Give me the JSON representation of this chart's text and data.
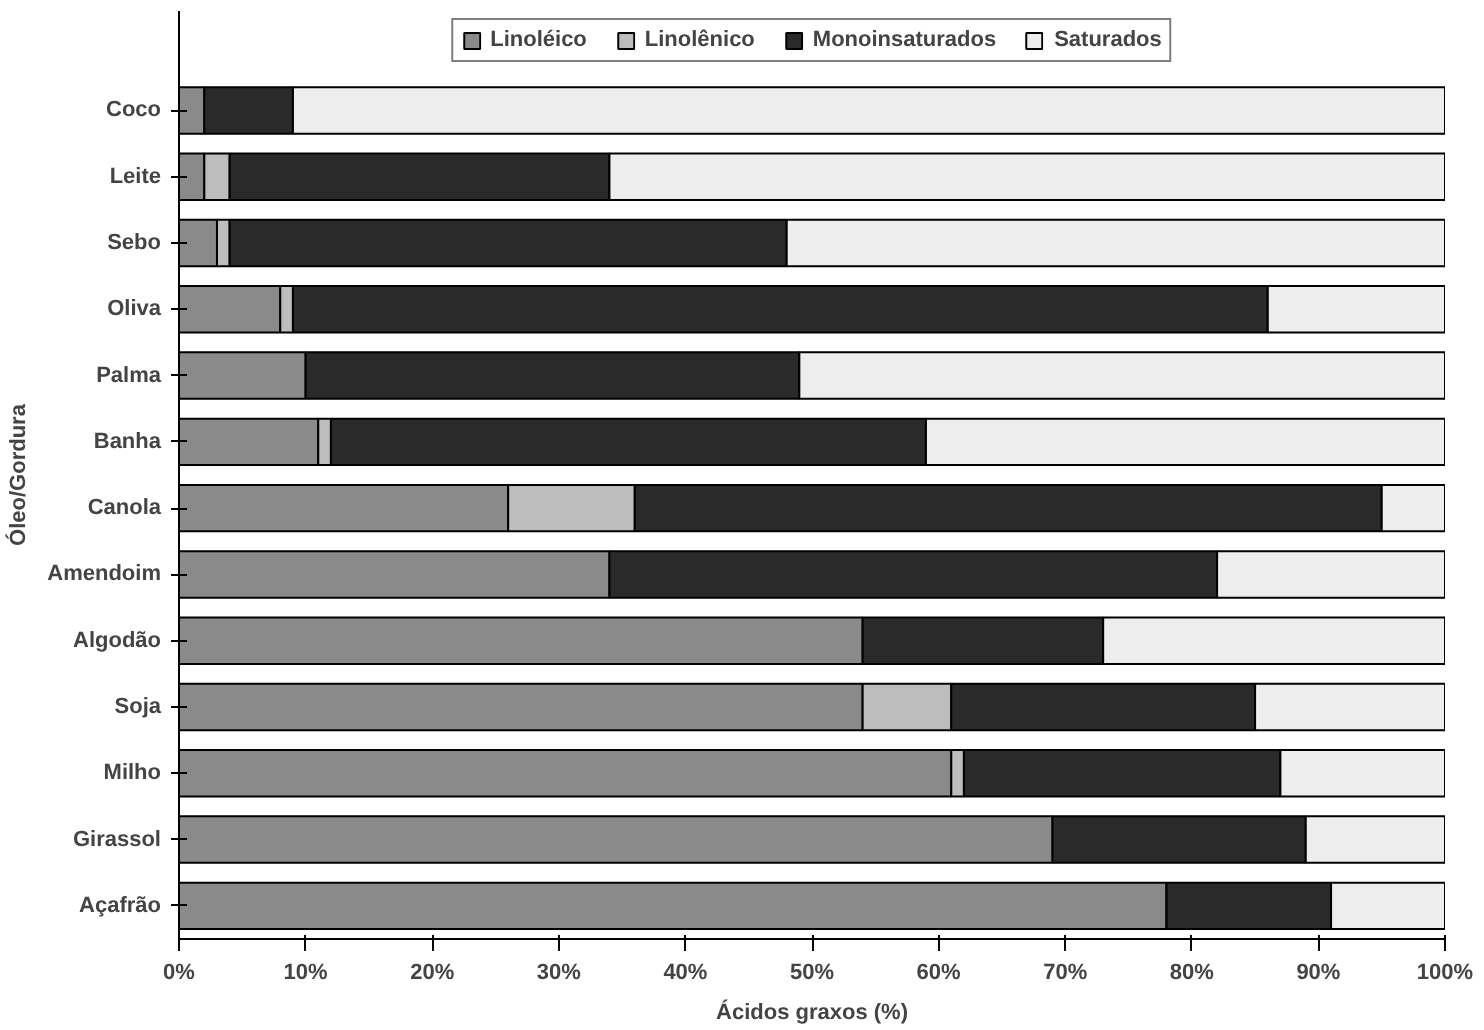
{
  "chart_data": {
    "type": "bar",
    "orientation": "horizontal",
    "stacked": true,
    "xlabel": "Ácidos graxos (%)",
    "ylabel": "Óleo/Gordura",
    "categories": [
      "Coco",
      "Leite",
      "Sebo",
      "Oliva",
      "Palma",
      "Banha",
      "Canola",
      "Amendoim",
      "Algodão",
      "Soja",
      "Milho",
      "Girassol",
      "Açafrão"
    ],
    "series": [
      {
        "name": "Linoléico",
        "color": "#8a8a8a",
        "values": [
          2,
          2,
          3,
          8,
          10,
          11,
          26,
          34,
          54,
          54,
          61,
          69,
          78
        ]
      },
      {
        "name": "Linolênico",
        "color": "#bdbdbd",
        "values": [
          null,
          2,
          1,
          1,
          null,
          1,
          10,
          null,
          null,
          7,
          1,
          null,
          null
        ]
      },
      {
        "name": "Monoinsaturados",
        "color": "#2a2a2a",
        "values": [
          7,
          30,
          44,
          77,
          39,
          47,
          59,
          48,
          19,
          24,
          25,
          20,
          13
        ]
      },
      {
        "name": "Saturados",
        "color": "#ededed",
        "values": [
          91,
          66,
          52,
          14,
          51,
          41,
          5,
          18,
          27,
          15,
          13,
          11,
          9
        ]
      }
    ],
    "xlim": [
      0,
      100
    ],
    "xticks": [
      {
        "value": 0,
        "label": "0%"
      },
      {
        "value": 10,
        "label": "10%"
      },
      {
        "value": 20,
        "label": "20%"
      },
      {
        "value": 30,
        "label": "30%"
      },
      {
        "value": 40,
        "label": "40%"
      },
      {
        "value": 50,
        "label": "50%"
      },
      {
        "value": 60,
        "label": "60%"
      },
      {
        "value": 70,
        "label": "70%"
      },
      {
        "value": 80,
        "label": "80%"
      },
      {
        "value": 90,
        "label": "90%"
      },
      {
        "value": 100,
        "label": "100%"
      }
    ],
    "grid": false,
    "legend": "top"
  }
}
